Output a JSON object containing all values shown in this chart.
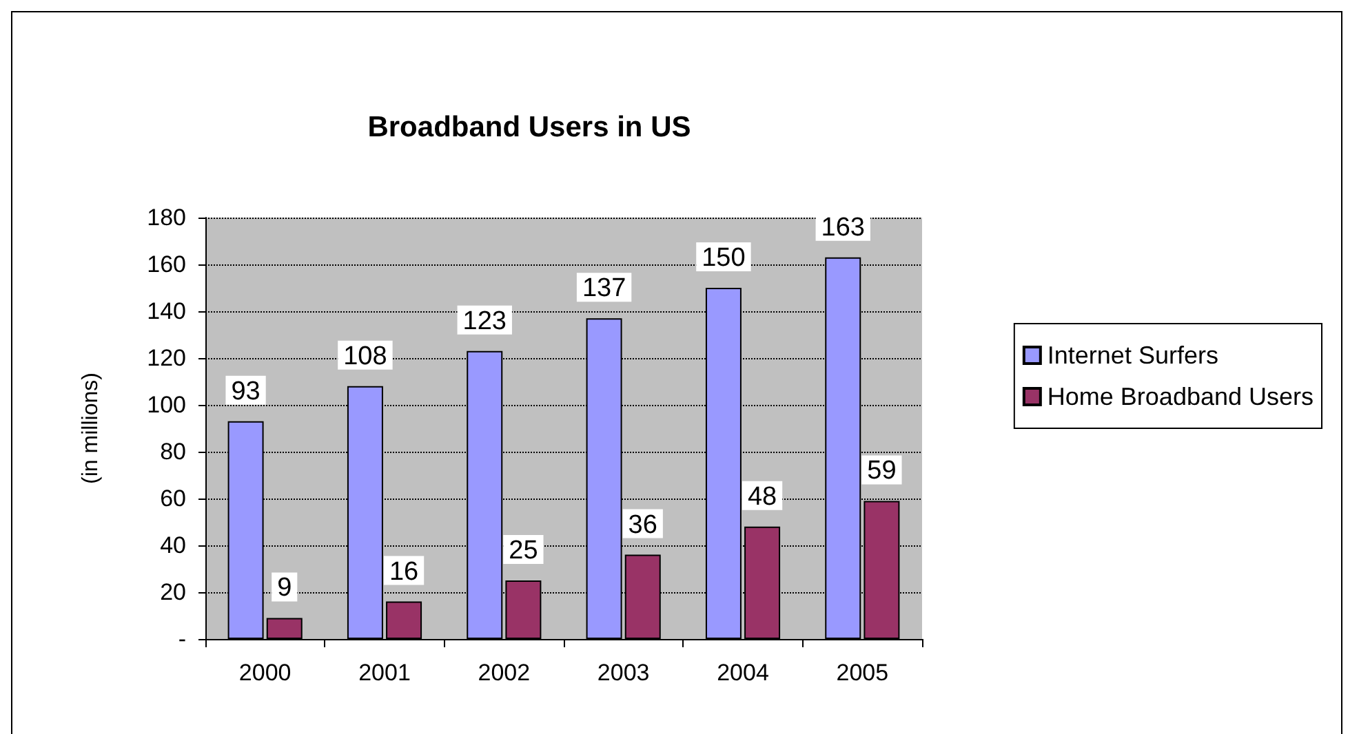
{
  "chart_data": {
    "type": "bar",
    "title": "Broadband Users in US",
    "ylabel": "(in millions)",
    "categories": [
      "2000",
      "2001",
      "2002",
      "2003",
      "2004",
      "2005"
    ],
    "series": [
      {
        "name": "Internet Surfers",
        "color": "#9999ff",
        "values": [
          93,
          108,
          123,
          137,
          150,
          163
        ]
      },
      {
        "name": "Home Broadband Users",
        "color": "#993366",
        "values": [
          9,
          16,
          25,
          36,
          48,
          59
        ]
      }
    ],
    "ylim": [
      0,
      180
    ],
    "yticks": [
      {
        "value": 0,
        "label": "-"
      },
      20,
      40,
      60,
      80,
      100,
      120,
      140,
      160,
      180
    ],
    "grid": "y",
    "legend": "right",
    "data_labels": true
  }
}
